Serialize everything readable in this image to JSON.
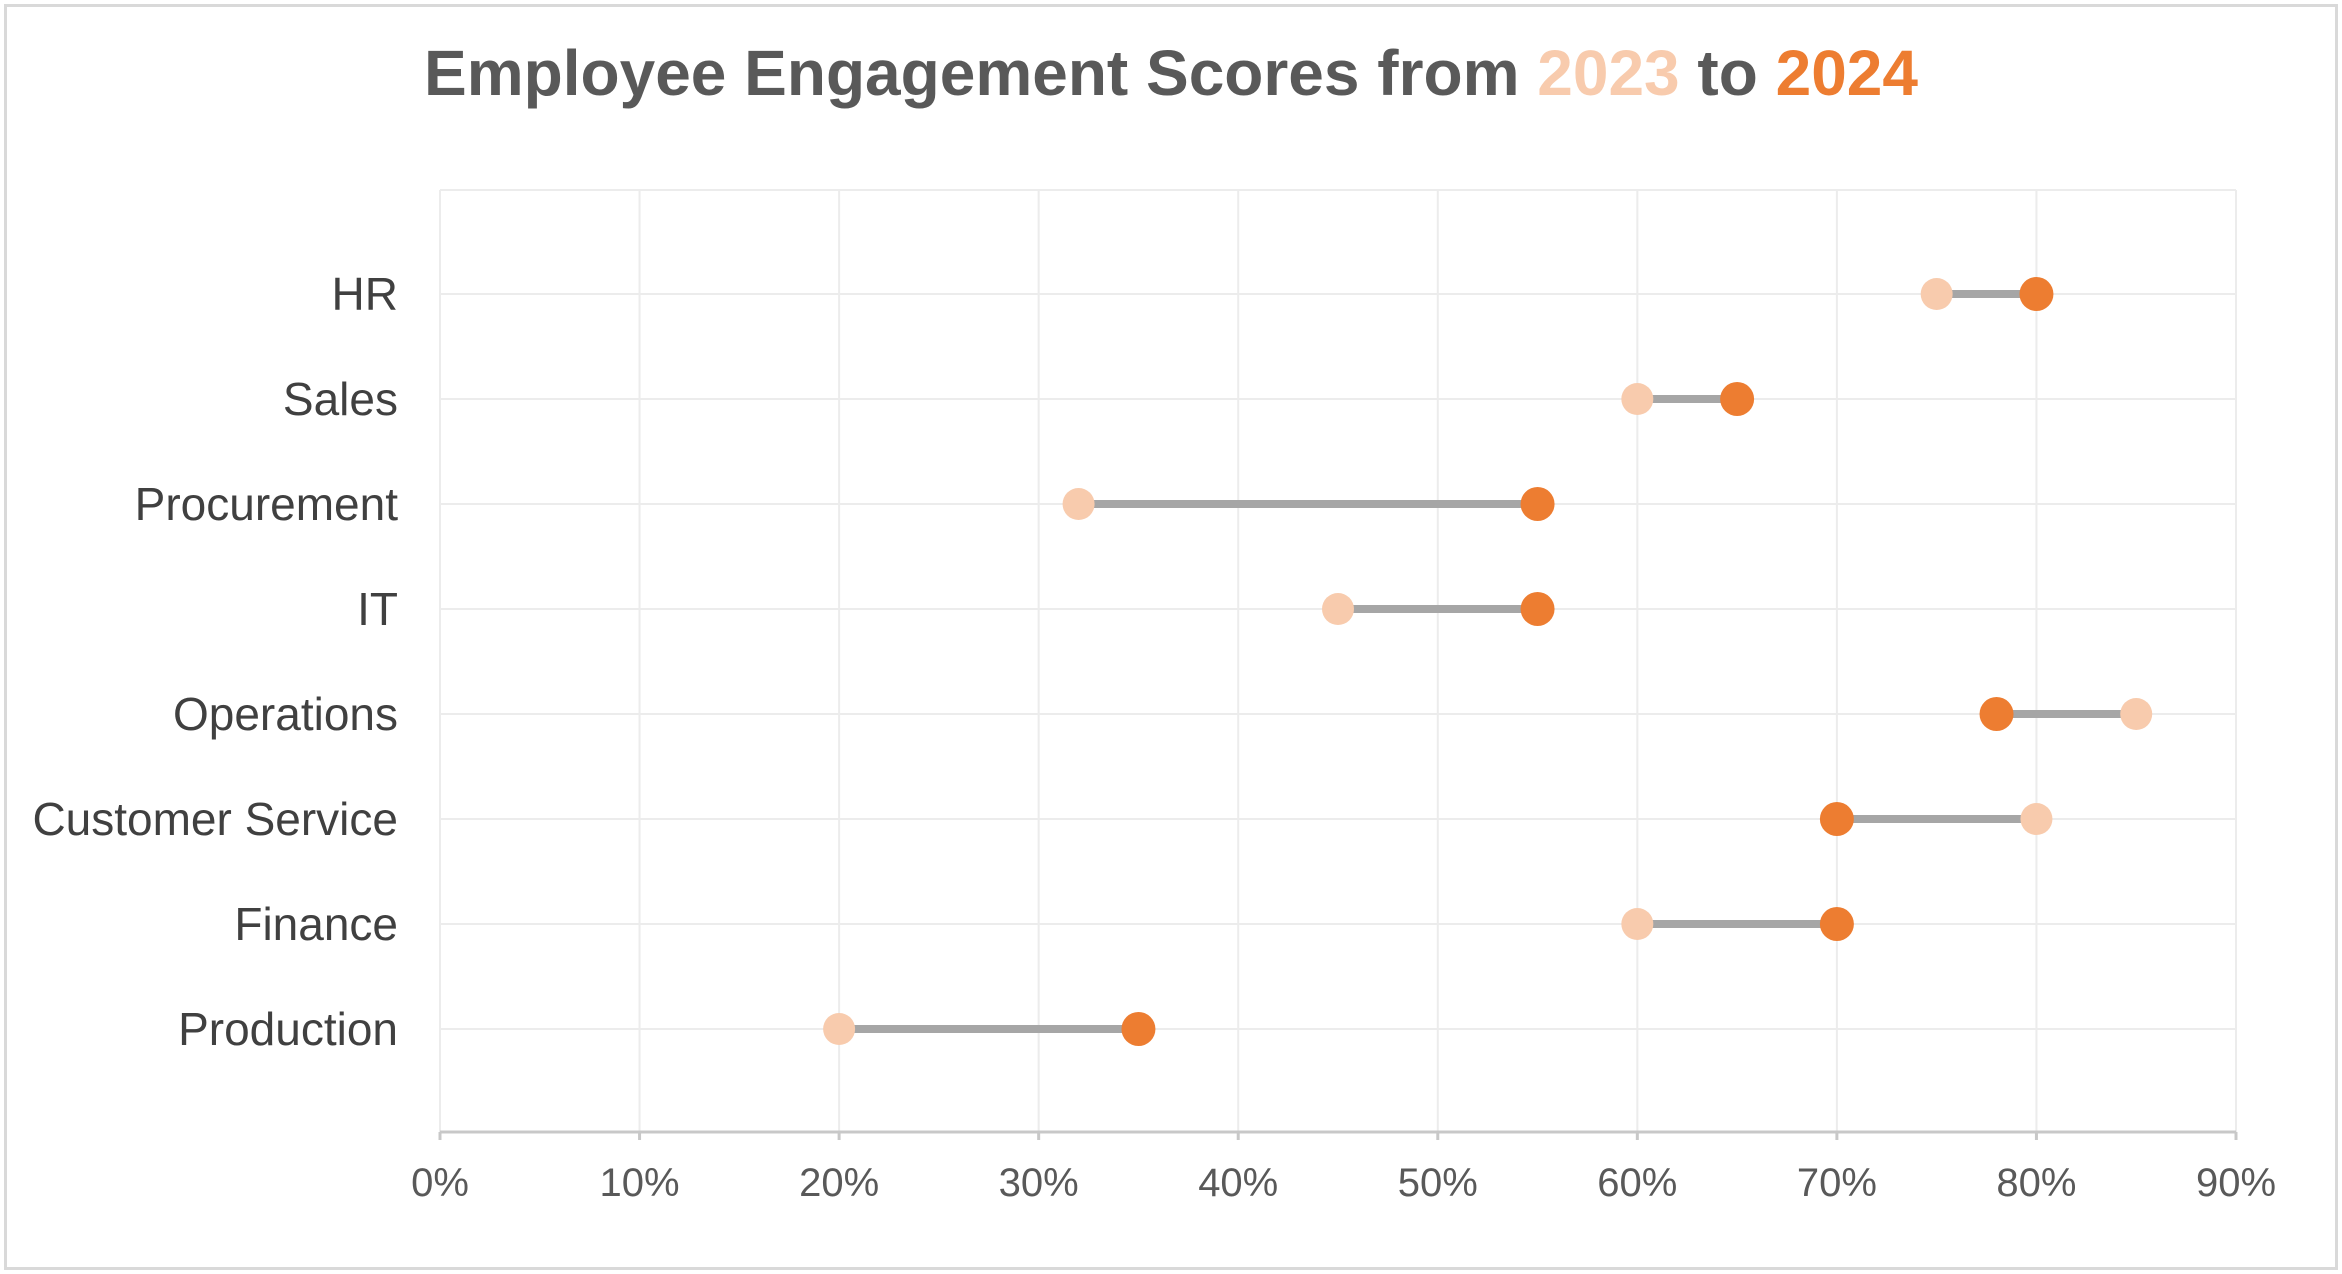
{
  "chart_data": {
    "type": "dumbbell",
    "title": {
      "prefix": "Employee Engagement Scores from ",
      "year_a": "2023",
      "middle": " to ",
      "year_b": "2024"
    },
    "categories": [
      "HR",
      "Sales",
      "Procurement",
      "IT",
      "Operations",
      "Customer Service",
      "Finance",
      "Production"
    ],
    "series": [
      {
        "name": "2023",
        "color": "#f8cbad",
        "values": [
          75,
          60,
          32,
          45,
          85,
          80,
          60,
          20
        ]
      },
      {
        "name": "2024",
        "color": "#ed7d31",
        "values": [
          80,
          65,
          55,
          55,
          78,
          70,
          70,
          35
        ]
      }
    ],
    "connector_color": "#a6a6a6",
    "xlim": [
      0,
      90
    ],
    "xticks": [
      0,
      10,
      20,
      30,
      40,
      50,
      60,
      70,
      80,
      90
    ],
    "xtick_labels": [
      "0%",
      "10%",
      "20%",
      "30%",
      "40%",
      "50%",
      "60%",
      "70%",
      "80%",
      "90%"
    ],
    "xlabel": "",
    "ylabel": "",
    "grid": true,
    "legend": "none"
  }
}
